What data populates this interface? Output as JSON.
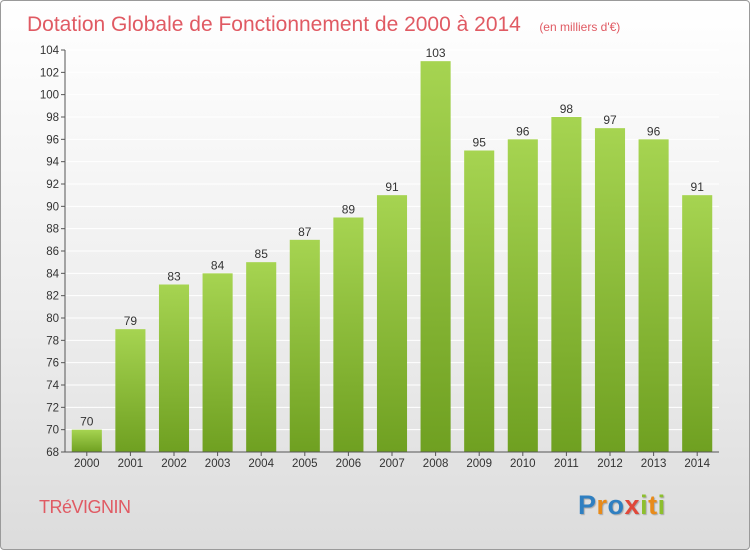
{
  "commune": "TRéVIGNIN",
  "logo": {
    "letters": [
      {
        "char": "P",
        "color": "#2f7fc1"
      },
      {
        "char": "r",
        "color": "#e88b1a"
      },
      {
        "char": "o",
        "color": "#2f7fc1"
      },
      {
        "char": "x",
        "color": "#e0483a"
      },
      {
        "char": "i",
        "color": "#8dbf2e"
      },
      {
        "char": "t",
        "color": "#e88b1a"
      },
      {
        "char": "i",
        "color": "#8dbf2e"
      }
    ]
  },
  "chart_data": {
    "type": "bar",
    "title": "Dotation Globale de Fonctionnement de 2000 à 2014",
    "subtitle": "(en milliers d'€)",
    "categories": [
      "2000",
      "2001",
      "2002",
      "2003",
      "2004",
      "2005",
      "2006",
      "2007",
      "2008",
      "2009",
      "2010",
      "2011",
      "2012",
      "2013",
      "2014"
    ],
    "values": [
      70,
      79,
      83,
      84,
      85,
      87,
      89,
      91,
      103,
      95,
      96,
      98,
      97,
      96,
      91
    ],
    "ylim": [
      68,
      104
    ],
    "yticks": [
      68,
      70,
      72,
      74,
      76,
      78,
      80,
      82,
      84,
      86,
      88,
      90,
      92,
      94,
      96,
      98,
      100,
      102,
      104
    ],
    "grid": true,
    "bar_color_top": "#a6d451",
    "bar_color_bottom": "#6fa021"
  }
}
